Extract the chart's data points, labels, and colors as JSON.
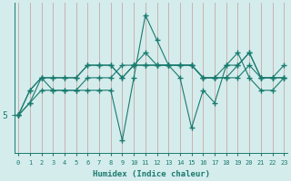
{
  "xlabel": "Humidex (Indice chaleur)",
  "background_color": "#d4ecec",
  "line_color": "#1a7a6e",
  "grid_color": "#c8a8a8",
  "series": [
    [
      5,
      6,
      8,
      7,
      7,
      7,
      8,
      8,
      8,
      9,
      9,
      9,
      9,
      9,
      9,
      9,
      8,
      8,
      8,
      8,
      9,
      8,
      8,
      8
    ],
    [
      5,
      7,
      8,
      8,
      8,
      8,
      9,
      9,
      9,
      8,
      9,
      9,
      9,
      9,
      9,
      9,
      8,
      8,
      9,
      9,
      10,
      8,
      8,
      8
    ],
    [
      5,
      7,
      8,
      8,
      8,
      8,
      9,
      9,
      9,
      8,
      9,
      10,
      9,
      9,
      9,
      9,
      8,
      8,
      8,
      9,
      10,
      8,
      8,
      9
    ],
    [
      5,
      6,
      7,
      7,
      7,
      7,
      7,
      7,
      7,
      3,
      8,
      13,
      11,
      9,
      8,
      4,
      7,
      6,
      9,
      10,
      8,
      7,
      7,
      8
    ]
  ],
  "x_ticks": [
    0,
    1,
    2,
    3,
    4,
    5,
    6,
    7,
    8,
    9,
    10,
    11,
    12,
    13,
    14,
    15,
    16,
    17,
    18,
    19,
    20,
    21,
    22,
    23
  ],
  "y_tick_val": 5,
  "y_tick_label": "5",
  "xlim": [
    -0.3,
    23.3
  ],
  "ylim": [
    2.0,
    14.0
  ]
}
